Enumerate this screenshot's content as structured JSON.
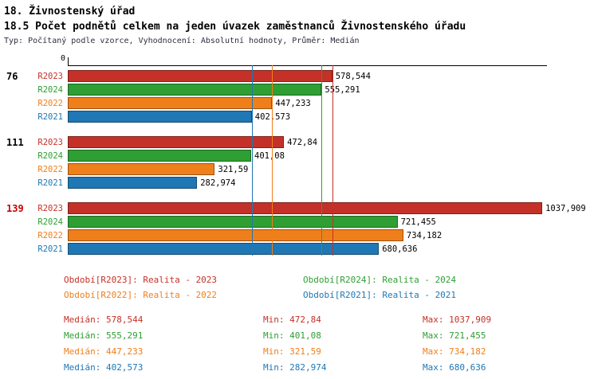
{
  "header": {
    "title": "18. Živnostenský úřad",
    "subtitle": "18.5 Počet podnětů celkem na jeden úvazek zaměstnanců Živnostenského úřadu",
    "meta": "Typ: Počítaný podle vzorce, Vyhodnocení: Absolutní hodnoty, Průměr: Medián"
  },
  "colors": {
    "R2023": "#c43128",
    "R2024": "#2f9e33",
    "R2022": "#ef7f1b",
    "R2021": "#1f77b4",
    "id_default": "#000000",
    "id_highlight": "#cc0000",
    "axis": "#000000"
  },
  "chart_data": {
    "type": "bar",
    "orientation": "horizontal",
    "title": "18.5 Počet podnětů celkem na jeden úvazek zaměstnanců Živnostenského úřadu",
    "xlabel": "",
    "ylabel": "",
    "xlim": [
      0,
      1047
    ],
    "x_axis": {
      "zero_label": "0"
    },
    "series_order": [
      "R2023",
      "R2024",
      "R2022",
      "R2021"
    ],
    "groups": [
      {
        "id": "76",
        "highlight": false,
        "bars": [
          {
            "series": "R2023",
            "value": 578.544,
            "display": "578,544"
          },
          {
            "series": "R2024",
            "value": 555.291,
            "display": "555,291"
          },
          {
            "series": "R2022",
            "value": 447.233,
            "display": "447,233"
          },
          {
            "series": "R2021",
            "value": 402.573,
            "display": "402,573"
          }
        ]
      },
      {
        "id": "111",
        "highlight": false,
        "bars": [
          {
            "series": "R2023",
            "value": 472.84,
            "display": "472,84"
          },
          {
            "series": "R2024",
            "value": 401.08,
            "display": "401,08"
          },
          {
            "series": "R2022",
            "value": 321.59,
            "display": "321,59"
          },
          {
            "series": "R2021",
            "value": 282.974,
            "display": "282,974"
          }
        ]
      },
      {
        "id": "139",
        "highlight": true,
        "bars": [
          {
            "series": "R2023",
            "value": 1037.909,
            "display": "1037,909"
          },
          {
            "series": "R2024",
            "value": 721.455,
            "display": "721,455"
          },
          {
            "series": "R2022",
            "value": 734.182,
            "display": "734,182"
          },
          {
            "series": "R2021",
            "value": 680.636,
            "display": "680,636"
          }
        ]
      }
    ],
    "median_lines": [
      {
        "series": "R2023",
        "value": 578.544
      },
      {
        "series": "R2024",
        "value": 555.291
      },
      {
        "series": "R2022",
        "value": 447.233
      },
      {
        "series": "R2021",
        "value": 402.573
      }
    ]
  },
  "legend": [
    {
      "series": "R2023",
      "text": "Období[R2023]: Realita - 2023"
    },
    {
      "series": "R2024",
      "text": "Období[R2024]: Realita - 2024"
    },
    {
      "series": "R2022",
      "text": "Období[R2022]: Realita - 2022"
    },
    {
      "series": "R2021",
      "text": "Období[R2021]: Realita - 2021"
    }
  ],
  "stats": [
    {
      "series": "R2023",
      "median": "Medián: 578,544",
      "min": "Min: 472,84",
      "max": "Max: 1037,909"
    },
    {
      "series": "R2024",
      "median": "Medián: 555,291",
      "min": "Min: 401,08",
      "max": "Max: 721,455"
    },
    {
      "series": "R2022",
      "median": "Medián: 447,233",
      "min": "Min: 321,59",
      "max": "Max: 734,182"
    },
    {
      "series": "R2021",
      "median": "Medián: 402,573",
      "min": "Min: 282,974",
      "max": "Max: 680,636"
    }
  ]
}
